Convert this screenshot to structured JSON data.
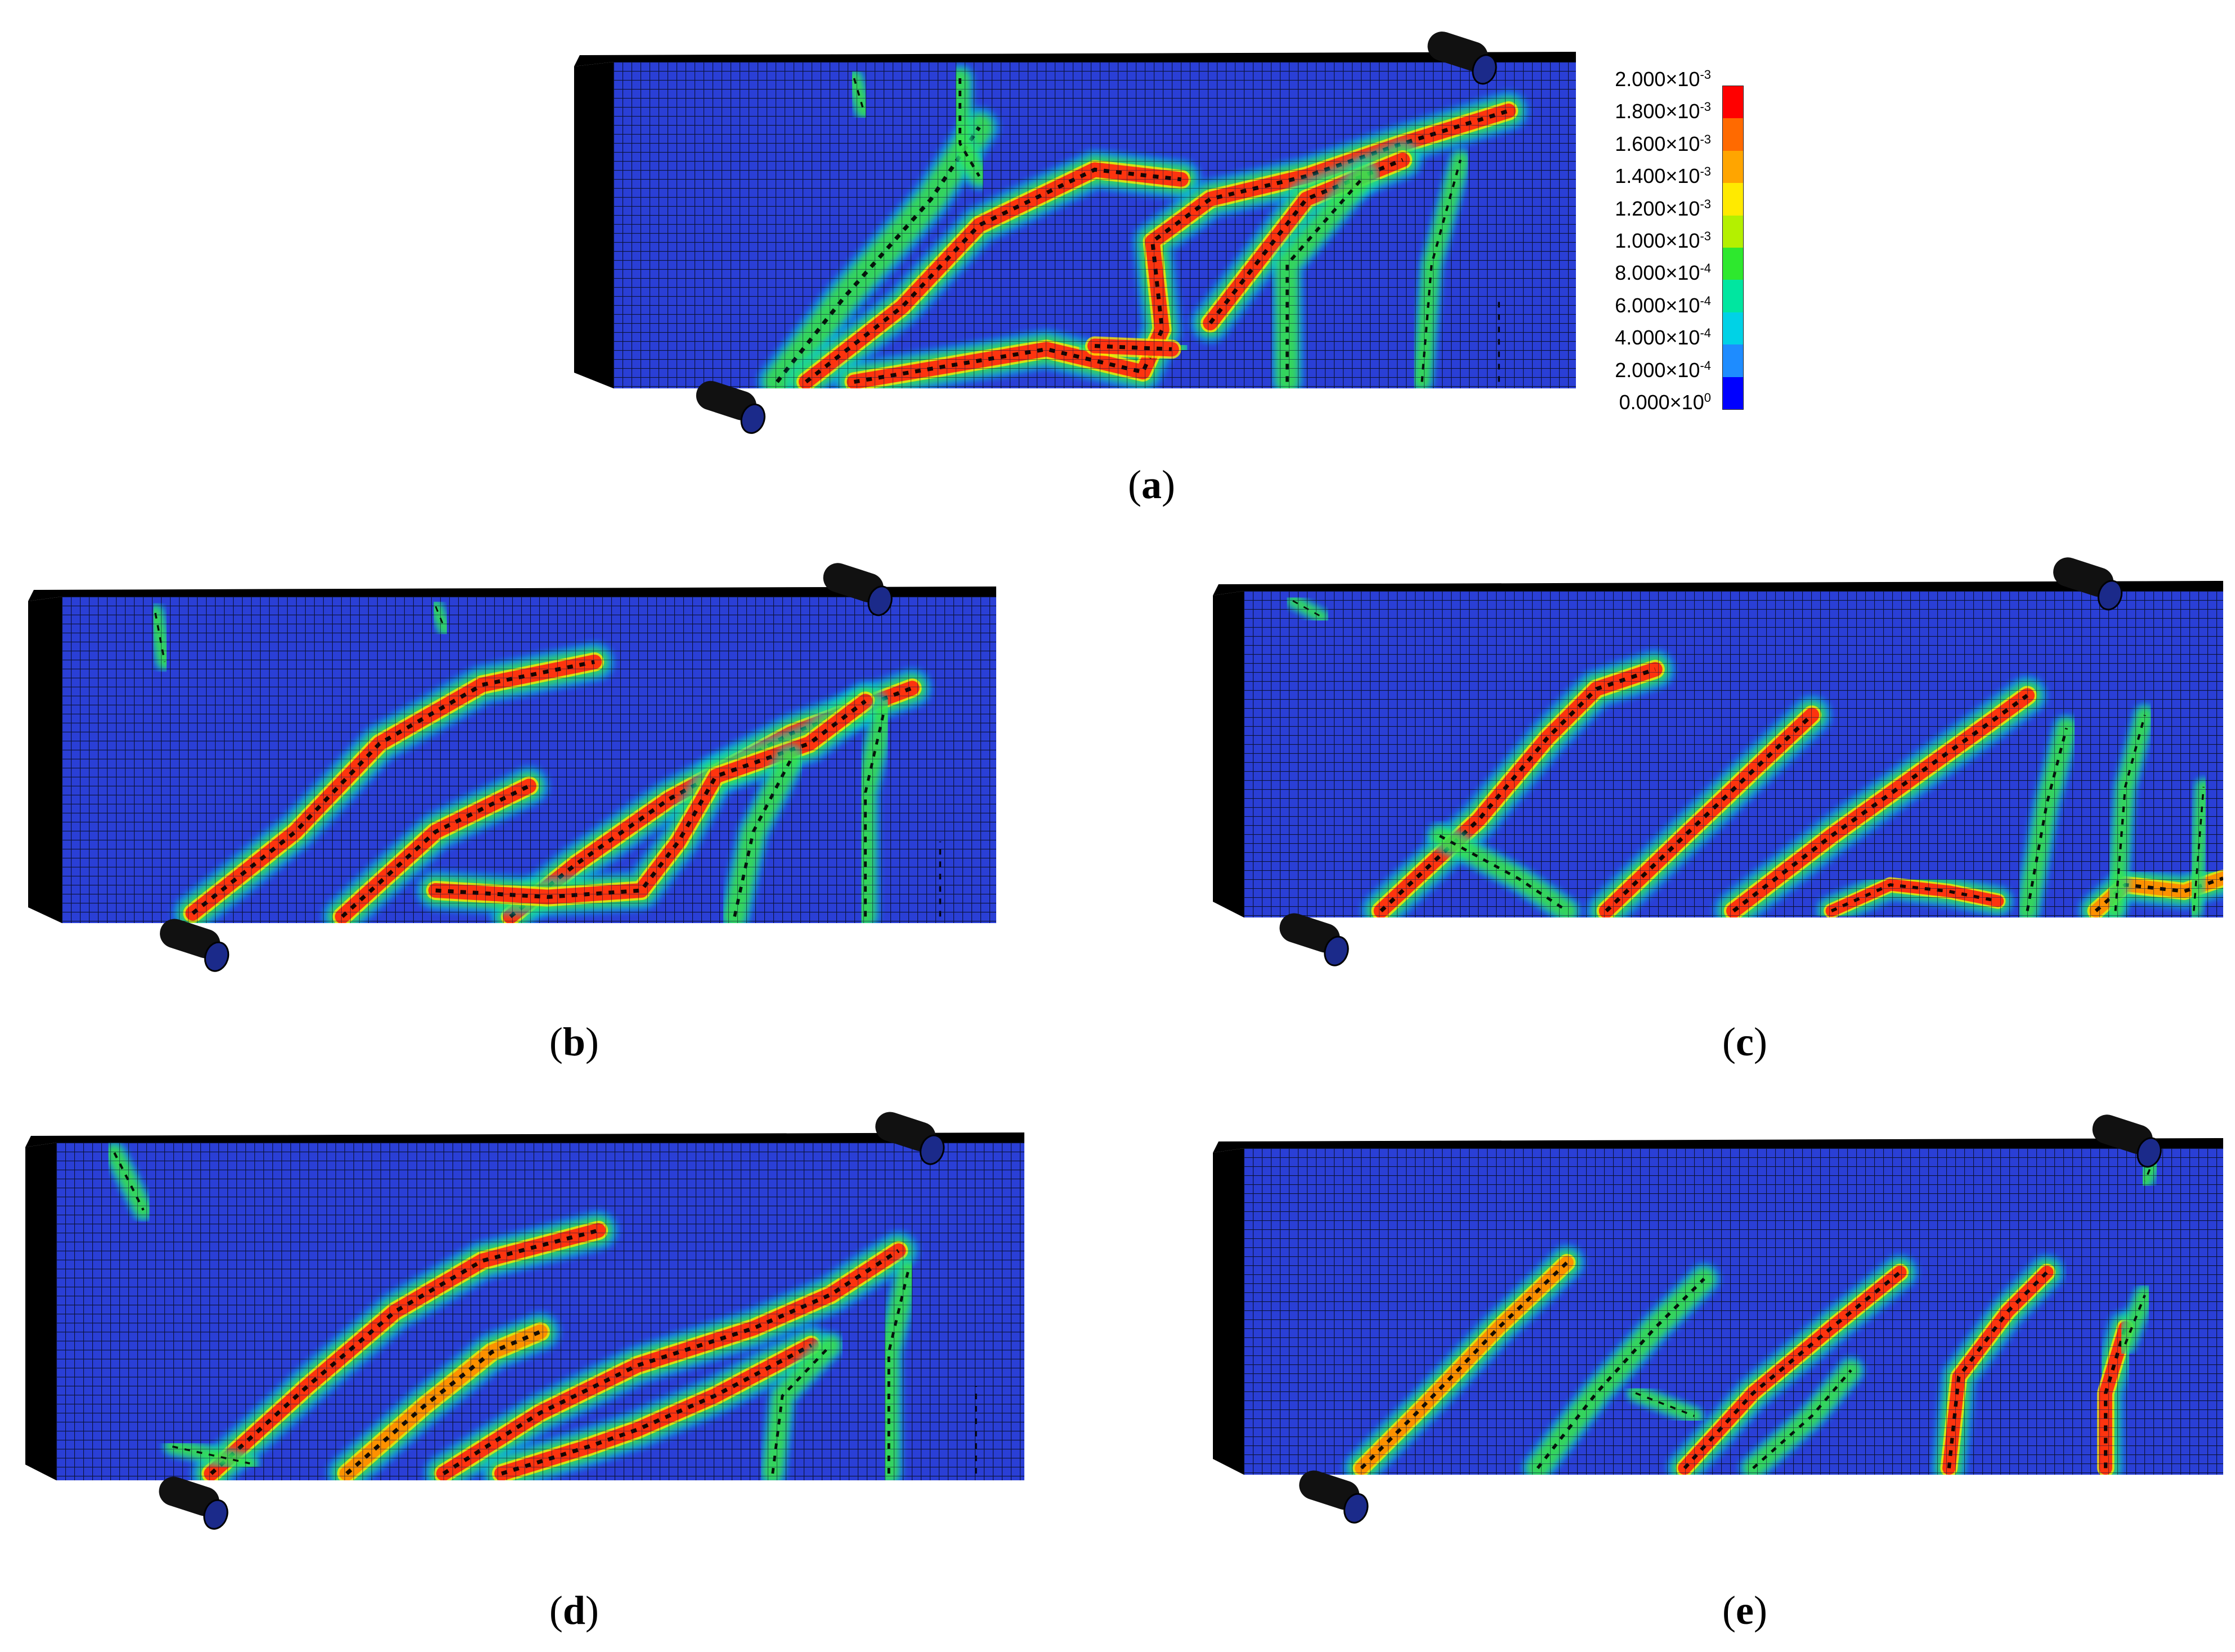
{
  "figure": {
    "panels": [
      {
        "id": "a",
        "caption_letter": "a"
      },
      {
        "id": "b",
        "caption_letter": "b"
      },
      {
        "id": "c",
        "caption_letter": "c"
      },
      {
        "id": "d",
        "caption_letter": "d"
      },
      {
        "id": "e",
        "caption_letter": "e"
      }
    ],
    "legend": {
      "entries": [
        {
          "label": "2.000×10",
          "exp": "-3",
          "color": "#ff0000"
        },
        {
          "label": "1.800×10",
          "exp": "-3",
          "color": "#ff6a00"
        },
        {
          "label": "1.600×10",
          "exp": "-3",
          "color": "#ffa500"
        },
        {
          "label": "1.400×10",
          "exp": "-3",
          "color": "#ffea00"
        },
        {
          "label": "1.200×10",
          "exp": "-3",
          "color": "#b4f000"
        },
        {
          "label": "1.000×10",
          "exp": "-3",
          "color": "#2ee82e"
        },
        {
          "label": "8.000×10",
          "exp": "-4",
          "color": "#00e6a0"
        },
        {
          "label": "6.000×10",
          "exp": "-4",
          "color": "#00d2e6"
        },
        {
          "label": "4.000×10",
          "exp": "-4",
          "color": "#1e8cff"
        },
        {
          "label": "2.000×10",
          "exp": "-4",
          "color": "#0000ff"
        },
        {
          "label": "0.000×10",
          "exp": "0",
          "color": "#0000dc"
        }
      ]
    },
    "colors": {
      "background_mesh": "#2a3fd6",
      "mesh_lines": "#0b1236",
      "beam_side": "#000000",
      "crack_red": "#ff2a10",
      "crack_orange": "#ff8c00",
      "crack_yellow": "#ffe600",
      "crack_green": "#3ce63c",
      "crack_cyan": "#00d2e6",
      "crack_black": "#000000",
      "support": "#111111"
    }
  }
}
